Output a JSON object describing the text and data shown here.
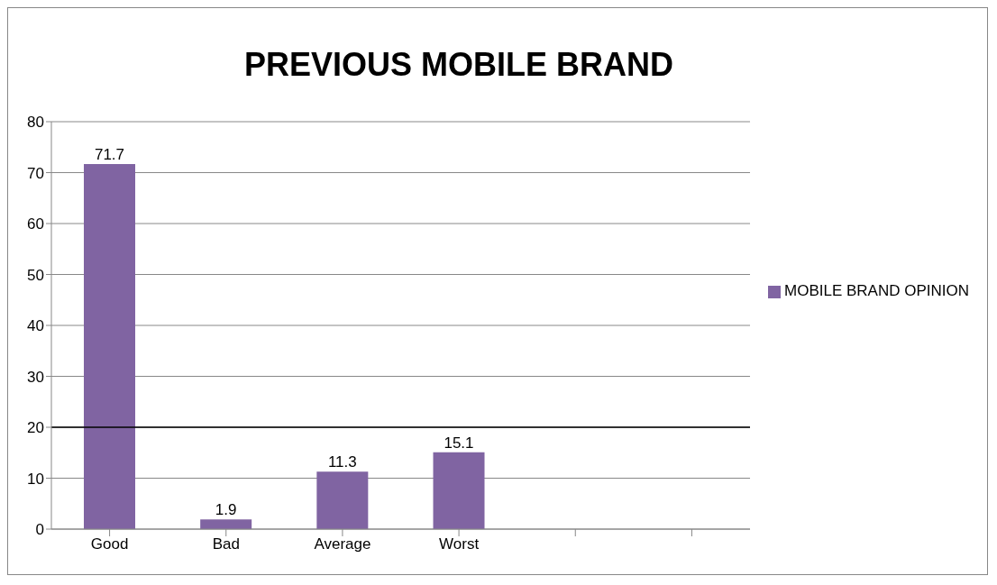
{
  "chart_data": {
    "type": "bar",
    "title": "PREVIOUS MOBILE BRAND",
    "categories": [
      "Good",
      "Bad",
      "Average",
      "Worst",
      null,
      null
    ],
    "series": [
      {
        "name": "MOBILE BRAND OPINION",
        "color": "#8064a2",
        "values": [
          71.7,
          1.9,
          11.3,
          15.1,
          null,
          null
        ]
      }
    ],
    "ylim": [
      0,
      80
    ],
    "yticks": [
      0,
      10,
      20,
      30,
      40,
      50,
      60,
      70,
      80
    ],
    "grid": "y",
    "legend": "right",
    "data_labels": true,
    "ref_lines": [
      {
        "axis": "y",
        "value": 20,
        "color": "#000000"
      }
    ]
  }
}
